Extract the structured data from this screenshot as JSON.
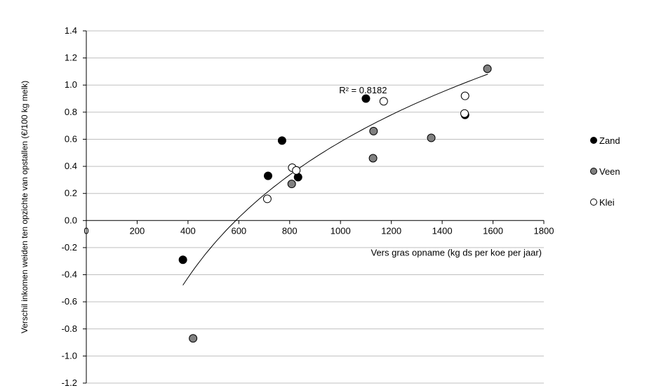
{
  "chart_data": {
    "type": "scatter",
    "ylabel": "Verschil inkomen weiden ten opzichte van opstallen (€/100 kg melk)",
    "xlabel": "Vers gras opname (kg ds per koe per jaar)",
    "xlim": [
      0,
      1800
    ],
    "ylim": [
      -1.2,
      1.4
    ],
    "x_ticks": [
      0,
      200,
      400,
      600,
      800,
      1000,
      1200,
      1400,
      1600,
      1800
    ],
    "y_ticks": [
      -1.2,
      -1.0,
      -0.8,
      -0.6,
      -0.4,
      -0.2,
      0.0,
      0.2,
      0.4,
      0.6,
      0.8,
      1.0,
      1.2,
      1.4
    ],
    "x_tick_labels": [
      "0",
      "200",
      "400",
      "600",
      "800",
      "1000",
      "1200",
      "1400",
      "1600",
      "1800"
    ],
    "y_tick_labels": [
      "-1.2",
      "-1.0",
      "-0.8",
      "-0.6",
      "-0.4",
      "-0.2",
      "0.0",
      "0.2",
      "0.4",
      "0.6",
      "0.8",
      "1.0",
      "1.2",
      "1.4"
    ],
    "grid": "horizontal",
    "legend_position": "right",
    "series": [
      {
        "name": "Zand",
        "color": "#000000",
        "points": [
          [
            380,
            -0.29
          ],
          [
            715,
            0.33
          ],
          [
            770,
            0.59
          ],
          [
            833,
            0.32
          ],
          [
            1100,
            0.9
          ],
          [
            1490,
            0.78
          ]
        ]
      },
      {
        "name": "Veen",
        "color": "#808080",
        "points": [
          [
            420,
            -0.87
          ],
          [
            808,
            0.27
          ],
          [
            1130,
            0.66
          ],
          [
            1128,
            0.46
          ],
          [
            1357,
            0.61
          ],
          [
            1578,
            1.12
          ]
        ]
      },
      {
        "name": "Klei",
        "color": "#ffffff",
        "points": [
          [
            712,
            0.16
          ],
          [
            810,
            0.39
          ],
          [
            826,
            0.37
          ],
          [
            1170,
            0.88
          ],
          [
            1490,
            0.92
          ],
          [
            1488,
            0.79
          ]
        ]
      }
    ],
    "trendline": {
      "type": "logarithmic",
      "coef_a": 1.0937,
      "coef_b": -6.9744,
      "x_range": [
        380,
        1580
      ],
      "r2_label": "R² = 0.8182",
      "r2_at": [
        1000,
        0.96
      ]
    }
  }
}
